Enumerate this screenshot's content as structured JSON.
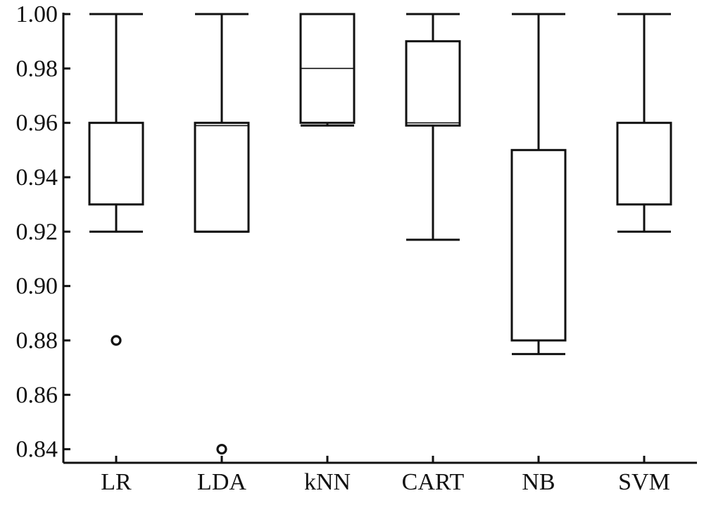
{
  "chart_data": {
    "type": "box",
    "title": "",
    "xlabel": "",
    "ylabel": "",
    "categories": [
      "LR",
      "LDA",
      "kNN",
      "CART",
      "NB",
      "SVM"
    ],
    "ylim": [
      0.835,
      1.0
    ],
    "yticks": [
      0.84,
      0.86,
      0.88,
      0.9,
      0.92,
      0.94,
      0.96,
      0.98,
      1.0
    ],
    "ytick_labels": [
      "0.84",
      "0.86",
      "0.88",
      "0.90",
      "0.92",
      "0.94",
      "0.96",
      "0.98",
      "1.00"
    ],
    "grid": false,
    "boxes": [
      {
        "category": "LR",
        "whisker_low": 0.92,
        "q1": 0.93,
        "median": 0.96,
        "q3": 0.96,
        "whisker_high": 1.0,
        "outliers": [
          0.88
        ]
      },
      {
        "category": "LDA",
        "whisker_low": 0.92,
        "q1": 0.92,
        "median": 0.959,
        "q3": 0.96,
        "whisker_high": 1.0,
        "outliers": [
          0.84
        ]
      },
      {
        "category": "kNN",
        "whisker_low": 0.959,
        "q1": 0.96,
        "median": 0.98,
        "q3": 1.0,
        "whisker_high": 1.0,
        "outliers": []
      },
      {
        "category": "CART",
        "whisker_low": 0.917,
        "q1": 0.959,
        "median": 0.96,
        "q3": 0.99,
        "whisker_high": 1.0,
        "outliers": []
      },
      {
        "category": "NB",
        "whisker_low": 0.875,
        "q1": 0.88,
        "median": 0.88,
        "q3": 0.95,
        "whisker_high": 1.0,
        "outliers": []
      },
      {
        "category": "SVM",
        "whisker_low": 0.92,
        "q1": 0.93,
        "median": 0.96,
        "q3": 0.96,
        "whisker_high": 1.0,
        "outliers": []
      }
    ]
  }
}
